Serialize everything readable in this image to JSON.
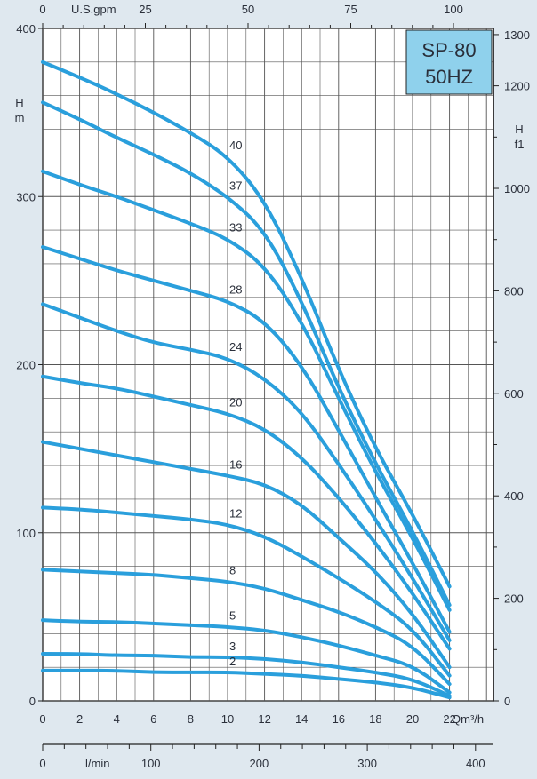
{
  "chart_data": {
    "type": "line",
    "title": "SP-80",
    "subtitle": "50HZ",
    "x": [
      0,
      2,
      4,
      6,
      8,
      10,
      12,
      14,
      16,
      18,
      20,
      22
    ],
    "xlabel": "Qm³/h",
    "xlim": [
      0,
      22
    ],
    "xticks": [
      "0",
      "2",
      "4",
      "6",
      "8",
      "10",
      "12",
      "14",
      "16",
      "18",
      "20",
      "22"
    ],
    "ylabel": "H\nm",
    "ylim": [
      0,
      400
    ],
    "yticks": [
      "0",
      "100",
      "200",
      "300",
      "400"
    ],
    "y2label": "H\nf1",
    "y2lim": [
      0,
      1312
    ],
    "y2ticks": [
      "0",
      "200",
      "400",
      "600",
      "800",
      "1000",
      "1200",
      "1300"
    ],
    "top_axis": {
      "label": "U.S.gpm",
      "ticks": [
        "0",
        "25",
        "50",
        "75",
        "100"
      ],
      "lim": [
        0,
        100
      ]
    },
    "bottom_axis": {
      "label": "l/min",
      "ticks": [
        "0",
        "100",
        "200",
        "300",
        "400"
      ],
      "lim": [
        0,
        400
      ]
    },
    "grid": true,
    "curve_color": "#2a9fdc",
    "title_box_color": "#8fd1ec",
    "series": [
      {
        "name": "40",
        "values": [
          380,
          371,
          361,
          350,
          338,
          324,
          298,
          252,
          197,
          150,
          111,
          68
        ]
      },
      {
        "name": "37",
        "values": [
          356,
          346,
          335,
          325,
          314,
          300,
          280,
          238,
          186,
          141,
          101,
          57
        ]
      },
      {
        "name": "33",
        "values": [
          315,
          307,
          300,
          292,
          284,
          275,
          259,
          226,
          180,
          136,
          97,
          54
        ]
      },
      {
        "name": "28",
        "values": [
          270,
          263,
          256,
          250,
          244,
          238,
          226,
          200,
          161,
          121,
          82,
          41
        ]
      },
      {
        "name": "24",
        "values": [
          236,
          228,
          220,
          213,
          209,
          204,
          192,
          172,
          141,
          108,
          73,
          36
        ]
      },
      {
        "name": "20",
        "values": [
          193,
          189,
          186,
          181,
          176,
          171,
          162,
          145,
          121,
          94,
          64,
          31
        ]
      },
      {
        "name": "16",
        "values": [
          154,
          150,
          146,
          142,
          138,
          134,
          129,
          117,
          97,
          77,
          52,
          20
        ]
      },
      {
        "name": "12",
        "values": [
          115,
          114,
          112,
          110,
          108,
          105,
          98,
          86,
          73,
          59,
          43,
          15
        ]
      },
      {
        "name": "8",
        "values": [
          78,
          77,
          76,
          75,
          73,
          71,
          67,
          60,
          53,
          44,
          33,
          10
        ]
      },
      {
        "name": "5",
        "values": [
          48,
          47,
          47,
          46,
          45,
          44,
          42,
          38,
          33,
          27,
          21,
          5
        ]
      },
      {
        "name": "3",
        "values": [
          28,
          28,
          27,
          27,
          26,
          26,
          25,
          23,
          20,
          17,
          13,
          3
        ]
      },
      {
        "name": "2",
        "values": [
          18,
          18,
          18,
          17,
          17,
          17,
          16,
          15,
          13,
          11,
          8,
          2
        ]
      }
    ],
    "curve_labels_at_x": [
      10,
      10,
      10,
      10,
      10,
      10,
      10,
      10,
      10,
      10,
      10,
      10
    ]
  }
}
